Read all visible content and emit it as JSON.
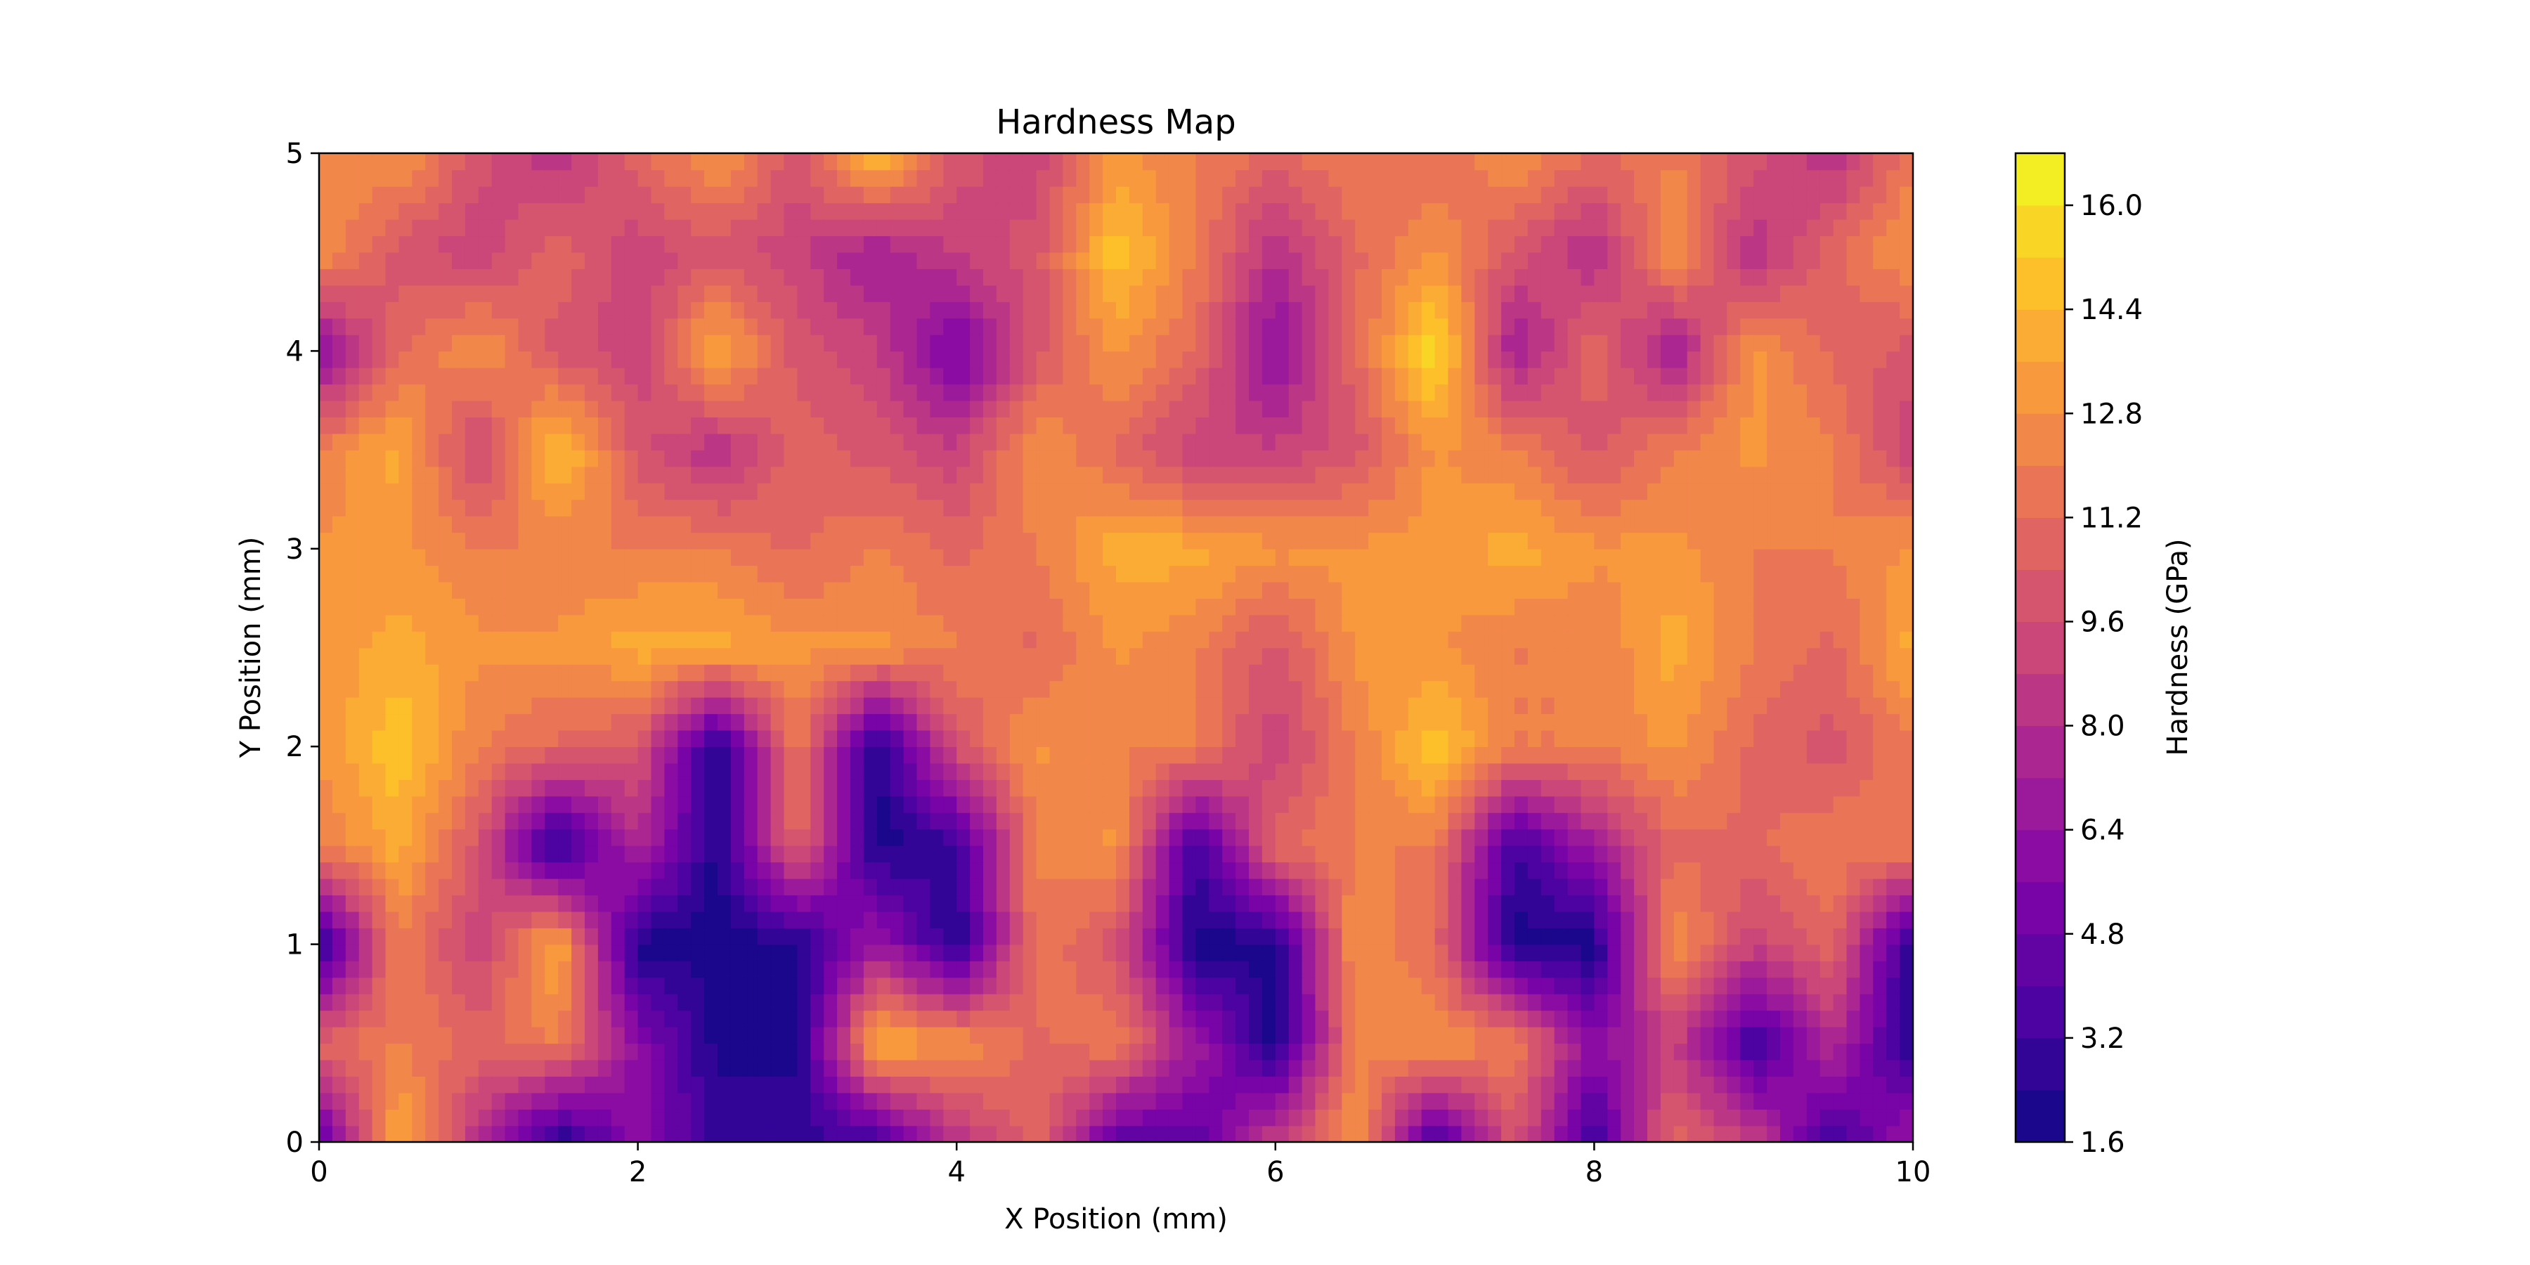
{
  "chart_data": {
    "type": "heatmap",
    "title": "Hardness Map",
    "xlabel": "X Position (mm)",
    "ylabel": "Y Position (mm)",
    "colorbar_label": "Hardness (GPa)",
    "colormap": "plasma",
    "style": "filled contour",
    "xlim": [
      0,
      10
    ],
    "ylim": [
      0,
      5
    ],
    "xticks": [
      "0",
      "2",
      "4",
      "6",
      "8",
      "10"
    ],
    "yticks": [
      "0",
      "1",
      "2",
      "3",
      "4",
      "5"
    ],
    "colorbar_range": [
      1.6,
      16.8
    ],
    "colorbar_ticks": [
      "1.6",
      "3.2",
      "4.8",
      "6.4",
      "8.0",
      "9.6",
      "11.2",
      "12.8",
      "14.4",
      "16.0"
    ],
    "x": [
      0,
      0.5,
      1,
      1.5,
      2,
      2.5,
      3,
      3.5,
      4,
      4.5,
      5,
      5.5,
      6,
      6.5,
      7,
      7.5,
      8,
      8.5,
      9,
      9.5,
      10
    ],
    "y": [
      0,
      0.5,
      1,
      1.5,
      2,
      2.5,
      3,
      3.5,
      4,
      4.5,
      5
    ],
    "z": [
      [
        4,
        14,
        8,
        2,
        6,
        3,
        3,
        3,
        8,
        11,
        4,
        4,
        9,
        13,
        3,
        10,
        3,
        11,
        9,
        3,
        7
      ],
      [
        11,
        12,
        11,
        12,
        6,
        2,
        2,
        14,
        13,
        11,
        12,
        7,
        2,
        12,
        13,
        12,
        6,
        9,
        3,
        8,
        2
      ],
      [
        2,
        12,
        9,
        14,
        2,
        2,
        2,
        7,
        2,
        12,
        10,
        2,
        2,
        13,
        11,
        2,
        2,
        13,
        9,
        11,
        2
      ],
      [
        12,
        14,
        10,
        2,
        8,
        2,
        11,
        2,
        3,
        12,
        13,
        3,
        11,
        12,
        12,
        3,
        7,
        11,
        11,
        12,
        12
      ],
      [
        13,
        15,
        12,
        11,
        10,
        2,
        12,
        2,
        10,
        13,
        12,
        12,
        9,
        12,
        15,
        12,
        12,
        13,
        11,
        10,
        12
      ],
      [
        13,
        14,
        13,
        13,
        14,
        14,
        13,
        13,
        12,
        11,
        13,
        12,
        10,
        13,
        13,
        12,
        12,
        14,
        12,
        11,
        14
      ],
      [
        13,
        13,
        12,
        12,
        12,
        12,
        11,
        12,
        11,
        12,
        14,
        14,
        13,
        13,
        13,
        14,
        13,
        13,
        12,
        12,
        13
      ],
      [
        12,
        14,
        9,
        15,
        10,
        8,
        11,
        10,
        9,
        13,
        11,
        9,
        9,
        10,
        13,
        12,
        10,
        12,
        13,
        12,
        9
      ],
      [
        6,
        11,
        13,
        10,
        9,
        14,
        10,
        9,
        5,
        10,
        13,
        11,
        6,
        11,
        16,
        7,
        11,
        7,
        13,
        11,
        10
      ],
      [
        13,
        10,
        9,
        11,
        9,
        10,
        9,
        7,
        9,
        10,
        15,
        12,
        8,
        11,
        13,
        10,
        8,
        13,
        8,
        11,
        13
      ],
      [
        12,
        13,
        10,
        8,
        11,
        13,
        10,
        15,
        10,
        9,
        13,
        12,
        11,
        12,
        11,
        13,
        11,
        12,
        10,
        8,
        12
      ]
    ]
  }
}
